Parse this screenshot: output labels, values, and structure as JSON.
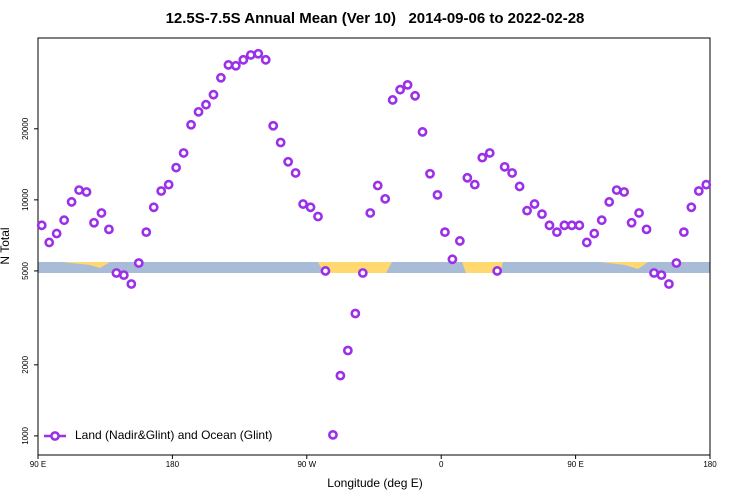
{
  "chart_data": {
    "type": "scatter",
    "title": "12.5S-7.5S Annual Mean (Ver 10)   2014-09-06 to 2022-02-28",
    "xlabel": "Longitude (deg E)",
    "ylabel": "N Total",
    "log_y": true,
    "legend": "lower left",
    "xlim": [
      90,
      540
    ],
    "ylim": [
      830,
      48500
    ],
    "xticks": [
      {
        "value": 90,
        "label": "90 E"
      },
      180,
      {
        "value": 270,
        "label": "90 W"
      },
      {
        "value": 360,
        "label": "0"
      },
      {
        "value": 450,
        "label": "90 E"
      },
      {
        "value": 540,
        "label": "180"
      }
    ],
    "yticks": [
      1000,
      2000,
      5000,
      10000,
      20000
    ],
    "x": [
      92.5,
      97.5,
      102.5,
      107.5,
      112.5,
      117.5,
      122.5,
      127.5,
      132.5,
      137.5,
      142.5,
      147.5,
      152.5,
      157.5,
      162.5,
      167.5,
      172.5,
      177.5,
      182.5,
      187.5,
      192.5,
      197.5,
      202.5,
      207.5,
      212.5,
      217.5,
      222.5,
      227.5,
      232.5,
      237.5,
      242.5,
      247.5,
      252.5,
      257.5,
      262.5,
      267.5,
      272.5,
      277.5,
      282.5,
      287.5,
      292.5,
      297.5,
      302.5,
      307.5,
      312.5,
      317.5,
      322.5,
      327.5,
      332.5,
      337.5,
      342.5,
      347.5,
      352.5,
      357.5,
      362.5,
      367.5,
      372.5,
      377.5,
      382.5,
      387.5,
      392.5,
      397.5,
      402.5,
      407.5,
      412.5,
      417.5,
      422.5,
      427.5,
      432.5,
      437.5,
      442.5,
      447.5,
      452.5,
      457.5,
      462.5,
      467.5,
      472.5,
      477.5,
      482.5,
      487.5,
      492.5,
      497.5,
      502.5,
      507.5,
      512.5,
      517.5,
      522.5,
      527.5,
      532.5,
      537.5
    ],
    "series": [
      {
        "name": "Land (Nadir&Glint) and Ocean (Glint)",
        "color": "#9b30e8",
        "values": [
          7800,
          6600,
          7200,
          8200,
          9800,
          11000,
          10800,
          8000,
          8800,
          7500,
          4900,
          4800,
          4400,
          5400,
          7300,
          9300,
          10900,
          11600,
          13700,
          15800,
          20800,
          23600,
          25300,
          27900,
          32900,
          37300,
          37000,
          39200,
          41100,
          41600,
          39200,
          20600,
          17500,
          14500,
          13000,
          9600,
          9300,
          8500,
          5000,
          1010,
          1800,
          2300,
          3300,
          4900,
          8800,
          11500,
          10100,
          26500,
          29300,
          30700,
          27600,
          19400,
          12900,
          10500,
          7300,
          5600,
          6700,
          12400,
          11600,
          15100,
          15800,
          5000,
          13800,
          13000,
          11400,
          9000,
          9600,
          8700,
          7800,
          7300,
          7800,
          7800,
          7800,
          6600,
          7200,
          8200,
          9800,
          11000,
          10800,
          8000,
          8800,
          7500,
          4900,
          4800,
          4400,
          5400,
          7300,
          9300,
          10900,
          11600
        ]
      }
    ]
  }
}
